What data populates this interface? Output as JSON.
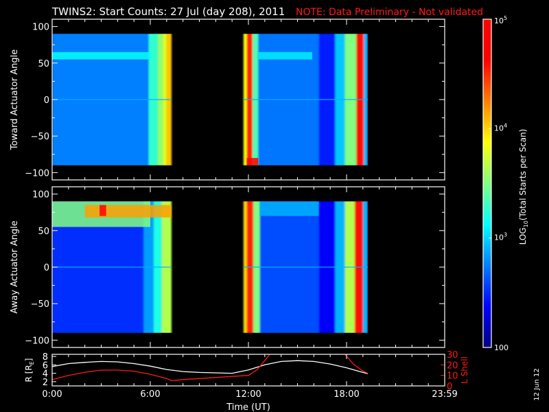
{
  "chart_data": [
    {
      "type": "heatmap",
      "title": "TWINS2: Start Counts: 27 Jul (day 208), 2011",
      "note": "NOTE: Data Preliminary - Not validated",
      "ylabel": "Toward Actuator Angle",
      "xlim": [
        0,
        24
      ],
      "ylim": [
        -110,
        110
      ],
      "yticks": [
        100,
        50,
        0,
        -50,
        -100
      ],
      "ytick_labels": [
        "100",
        "50",
        "0",
        "−50",
        "−100"
      ],
      "angle_range": [
        -90,
        90
      ],
      "data_intervals_hours": [
        [
          0.0,
          7.3
        ],
        [
          11.7,
          19.3
        ]
      ],
      "colorbar_scale": "log",
      "bands": [
        {
          "x0": 0.0,
          "x1": 5.9,
          "level": 0.25
        },
        {
          "x0": 5.9,
          "x1": 6.45,
          "level": 0.42
        },
        {
          "x0": 6.45,
          "x1": 6.8,
          "level": 0.52
        },
        {
          "x0": 6.8,
          "x1": 7.0,
          "level": 0.6
        },
        {
          "x0": 7.0,
          "x1": 7.3,
          "level": 0.68
        },
        {
          "x0": 11.7,
          "x1": 11.9,
          "level": 0.62
        },
        {
          "x0": 11.9,
          "x1": 12.25,
          "level": 0.84
        },
        {
          "x0": 12.25,
          "x1": 12.6,
          "level": 0.45
        },
        {
          "x0": 12.6,
          "x1": 16.3,
          "level": 0.24
        },
        {
          "x0": 16.3,
          "x1": 17.3,
          "level": 0.15
        },
        {
          "x0": 17.3,
          "x1": 17.9,
          "level": 0.32
        },
        {
          "x0": 17.9,
          "x1": 18.6,
          "level": 0.5
        },
        {
          "x0": 18.6,
          "x1": 19.05,
          "level": 0.86
        },
        {
          "x0": 19.05,
          "x1": 19.3,
          "level": 0.3
        }
      ],
      "features": [
        {
          "x0": 0.0,
          "x1": 6.0,
          "y0": 55,
          "y1": 65,
          "level": 0.38
        },
        {
          "x0": 12.6,
          "x1": 15.9,
          "y0": 55,
          "y1": 65,
          "level": 0.36
        },
        {
          "x0": 11.9,
          "x1": 12.6,
          "y0": -90,
          "y1": -80,
          "level": 0.9
        }
      ]
    },
    {
      "type": "heatmap",
      "ylabel": "Away Actuator Angle",
      "xlim": [
        0,
        24
      ],
      "ylim": [
        -110,
        110
      ],
      "yticks": [
        100,
        50,
        0,
        -50,
        -100
      ],
      "ytick_labels": [
        "100",
        "50",
        "0",
        "−50",
        "−100"
      ],
      "angle_range": [
        -90,
        90
      ],
      "data_intervals_hours": [
        [
          0.0,
          7.3
        ],
        [
          11.7,
          19.3
        ]
      ],
      "bands": [
        {
          "x0": 0.0,
          "x1": 5.6,
          "level": 0.17
        },
        {
          "x0": 5.6,
          "x1": 6.2,
          "level": 0.28
        },
        {
          "x0": 6.2,
          "x1": 6.7,
          "level": 0.4
        },
        {
          "x0": 6.7,
          "x1": 7.3,
          "level": 0.55
        },
        {
          "x0": 11.7,
          "x1": 11.9,
          "level": 0.66
        },
        {
          "x0": 11.9,
          "x1": 12.3,
          "level": 0.84
        },
        {
          "x0": 12.3,
          "x1": 12.7,
          "level": 0.5
        },
        {
          "x0": 12.7,
          "x1": 16.3,
          "level": 0.2
        },
        {
          "x0": 16.3,
          "x1": 17.3,
          "level": 0.12
        },
        {
          "x0": 17.3,
          "x1": 17.9,
          "level": 0.3
        },
        {
          "x0": 17.9,
          "x1": 18.5,
          "level": 0.55
        },
        {
          "x0": 18.5,
          "x1": 19.0,
          "level": 0.86
        },
        {
          "x0": 19.0,
          "x1": 19.3,
          "level": 0.3
        }
      ],
      "features": [
        {
          "x0": 0.0,
          "x1": 6.0,
          "y0": 55,
          "y1": 90,
          "level": 0.5
        },
        {
          "x0": 2.0,
          "x1": 7.3,
          "y0": 68,
          "y1": 85,
          "level": 0.72
        },
        {
          "x0": 2.9,
          "x1": 3.3,
          "y0": 70,
          "y1": 85,
          "level": 0.9
        },
        {
          "x0": 12.7,
          "x1": 16.3,
          "y0": 70,
          "y1": 90,
          "level": 0.3
        }
      ]
    },
    {
      "type": "line",
      "xlabel": "Time (UT)",
      "xticks": [
        0,
        6,
        12,
        18,
        24
      ],
      "xtick_labels": [
        "0:00",
        "6:00",
        "12:00",
        "18:00",
        "23:59"
      ],
      "xlim": [
        0,
        24
      ],
      "ylabel": "R [R",
      "ylabel_sub": "E",
      "ylabel_close": "]",
      "ylim": [
        1,
        8.5
      ],
      "yticks": [
        2,
        4,
        6,
        8
      ],
      "ytick_labels": [
        "2",
        "4",
        "6",
        "8"
      ],
      "y2label": "L Shell",
      "y2lim": [
        0,
        30
      ],
      "y2ticks": [
        0,
        10,
        20,
        30
      ],
      "y2tick_labels": [
        "0",
        "10",
        "20",
        "30"
      ],
      "series": [
        {
          "color": "#ffffff",
          "axis": "left",
          "x": [
            0,
            1,
            2,
            3,
            4,
            5,
            6,
            7,
            8,
            9,
            10,
            11,
            12,
            13,
            14,
            15,
            16,
            17,
            18,
            19,
            19.3
          ],
          "y": [
            5.6,
            6.3,
            6.6,
            6.8,
            6.7,
            6.3,
            5.7,
            4.9,
            4.4,
            4.2,
            4.1,
            4.0,
            4.8,
            6.0,
            6.8,
            7.0,
            6.8,
            6.2,
            5.3,
            4.2,
            3.9
          ]
        },
        {
          "color": "#ff1a1a",
          "axis": "right",
          "x": [
            0,
            1,
            2,
            3,
            4,
            5,
            6,
            7,
            7.3,
            8,
            9,
            10,
            11,
            12,
            12.5,
            13,
            13.3
          ],
          "y": [
            6,
            10,
            13,
            15,
            15,
            14,
            11,
            7,
            5,
            6,
            7,
            8,
            9,
            10,
            15,
            24,
            30
          ]
        },
        {
          "color": "#ff1a1a",
          "axis": "right",
          "x": [
            17.9,
            18.4,
            19.0,
            19.3
          ],
          "y": [
            30,
            21,
            14,
            12
          ]
        }
      ]
    }
  ],
  "colorbar": {
    "title_prefix": "LOG",
    "title_sub": "10",
    "title_suffix": "(Total Starts per Scan)",
    "ticks": [
      {
        "base": "10",
        "exp": "5"
      },
      {
        "base": "10",
        "exp": "4"
      },
      {
        "base": "10",
        "exp": "3"
      },
      {
        "base": "100",
        "exp": ""
      }
    ],
    "stops": [
      "#000080",
      "#0000ff",
      "#0080ff",
      "#00ffff",
      "#80ff80",
      "#ffff00",
      "#ff8000",
      "#ff0000",
      "#ff0000"
    ]
  },
  "date_stamp": "12 Jun 12"
}
